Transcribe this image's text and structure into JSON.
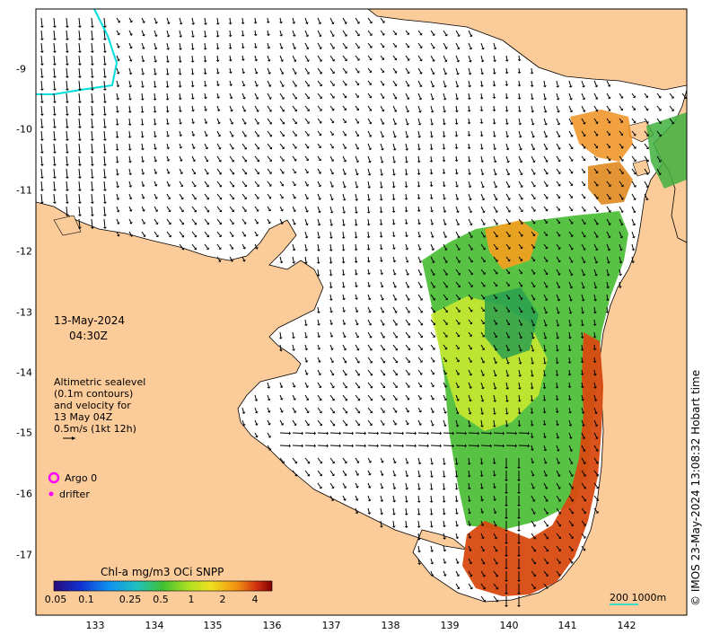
{
  "map": {
    "date": "13-May-2024",
    "time": "04:30Z",
    "legend_lines": [
      "Altimetric sealevel",
      "(0.1m contours)",
      "and velocity for",
      "13 May 04Z",
      "0.5m/s (1kt 12h)"
    ],
    "argo_label": "Argo 0",
    "drifter_label": "drifter",
    "colorbar_title": "Chl-a mg/m3 OCi SNPP",
    "colorbar_ticks": [
      "0.05",
      "0.1",
      "0.25",
      "0.5",
      "1",
      "2",
      "4"
    ],
    "scale_label": "200  1000m",
    "credit": "© IMOS 23-May-2024 13:08:32 Hobart time",
    "x_ticks": [
      "133",
      "134",
      "135",
      "136",
      "137",
      "138",
      "139",
      "140",
      "141",
      "142"
    ],
    "y_ticks": [
      "-9",
      "-10",
      "-11",
      "-12",
      "-13",
      "-14",
      "-15",
      "-16",
      "-17"
    ],
    "colors": {
      "land": "#fbcb9a",
      "ocean": "#ffffff",
      "argo": "#ff00ff",
      "depth_contour": "#00dddd",
      "arrows": "#000000"
    }
  }
}
